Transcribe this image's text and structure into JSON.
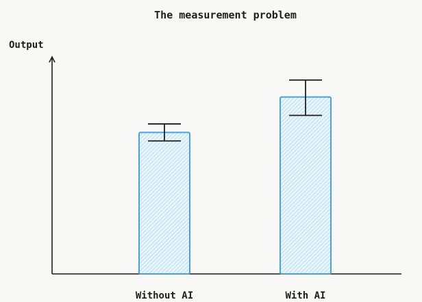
{
  "chart_data": {
    "type": "bar",
    "title": "The measurement problem",
    "ylabel": "Output",
    "xlabel": "",
    "categories": [
      "Without AI",
      "With AI"
    ],
    "values": [
      100,
      125
    ],
    "error_low": [
      94,
      112
    ],
    "error_high": [
      106,
      137
    ],
    "ylim": [
      0,
      150
    ],
    "y_ticks_shown": false,
    "grid": false,
    "error_bars": true,
    "colors": {
      "bar_fill": "#d3ecf8",
      "bar_stroke": "#4aa0e0",
      "axis": "#1e1e1e"
    }
  }
}
